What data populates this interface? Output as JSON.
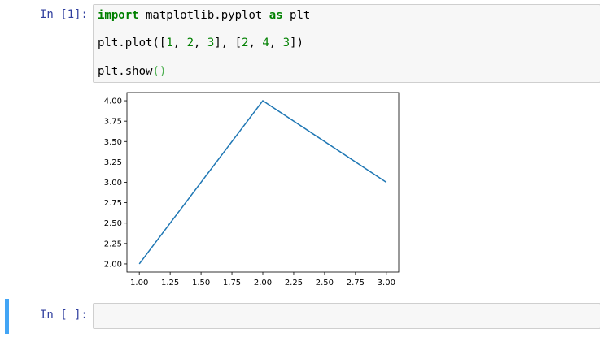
{
  "cell1": {
    "prompt": "In [1]:",
    "line1": {
      "kw1": "import",
      "mid": " matplotlib.pyplot ",
      "kw2": "as",
      "end": " plt"
    },
    "line2": {
      "a": "plt.plot([",
      "n1": "1",
      "s1": ", ",
      "n2": "2",
      "s2": ", ",
      "n3": "3",
      "b": "], [",
      "n4": "2",
      "s3": ", ",
      "n5": "4",
      "s4": ", ",
      "n6": "3",
      "c": "])"
    },
    "line3": {
      "a": "plt.show",
      "b": "()"
    }
  },
  "cell2": {
    "prompt": "In [ ]:"
  },
  "colors": {
    "prompt": "#303f9f",
    "keyword": "#008000",
    "line": "#1f77b4",
    "selected_bar": "#42a5f5"
  },
  "chart_data": {
    "type": "line",
    "title": "",
    "xlabel": "",
    "ylabel": "",
    "x": [
      1,
      2,
      3
    ],
    "y": [
      2,
      4,
      3
    ],
    "xlim": [
      0.9,
      3.1
    ],
    "ylim": [
      1.9,
      4.1
    ],
    "x_ticks": [
      1.0,
      1.25,
      1.5,
      1.75,
      2.0,
      2.25,
      2.5,
      2.75,
      3.0
    ],
    "x_tick_labels": [
      "1.00",
      "1.25",
      "1.50",
      "1.75",
      "2.00",
      "2.25",
      "2.50",
      "2.75",
      "3.00"
    ],
    "y_ticks": [
      2.0,
      2.25,
      2.5,
      2.75,
      3.0,
      3.25,
      3.5,
      3.75,
      4.0
    ],
    "y_tick_labels": [
      "2.00",
      "2.25",
      "2.50",
      "2.75",
      "3.00",
      "3.25",
      "3.50",
      "3.75",
      "4.00"
    ],
    "grid": false,
    "legend": "none"
  }
}
